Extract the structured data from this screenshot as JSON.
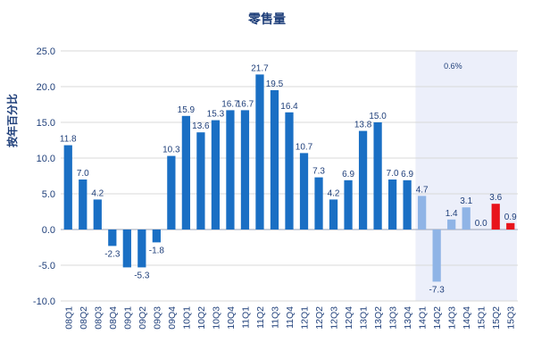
{
  "chart_data": {
    "type": "bar",
    "title": "零售量",
    "ylabel": "按年百分比",
    "xlabel": "",
    "ylim": [
      -10,
      25
    ],
    "yticks": [
      "25.0",
      "20.0",
      "15.0",
      "10.0",
      "5.0",
      "0.0",
      "-5.0",
      "-10.0"
    ],
    "grid": true,
    "legend": "none",
    "categories": [
      "08Q1",
      "08Q2",
      "08Q3",
      "08Q4",
      "09Q1",
      "09Q2",
      "09Q3",
      "09Q4",
      "10Q1",
      "10Q2",
      "10Q3",
      "10Q4",
      "11Q1",
      "11Q2",
      "11Q3",
      "11Q4",
      "12Q1",
      "12Q2",
      "12Q3",
      "12Q4",
      "13Q1",
      "13Q2",
      "13Q3",
      "13Q4",
      "14Q1",
      "14Q2",
      "14Q3",
      "14Q4",
      "15Q1",
      "15Q2",
      "15Q3"
    ],
    "values": [
      11.8,
      7.0,
      4.2,
      -2.3,
      -5.3,
      -5.3,
      -1.8,
      10.3,
      15.9,
      13.6,
      15.3,
      16.7,
      16.7,
      21.7,
      19.5,
      16.4,
      10.7,
      7.3,
      4.2,
      6.9,
      13.8,
      15.0,
      7.0,
      6.9,
      4.7,
      -7.3,
      1.4,
      3.1,
      0.0,
      3.6,
      0.9
    ],
    "labels": [
      "11.8",
      "7.0",
      "4.2",
      "-2.3",
      "",
      "-5.3",
      "-1.8",
      "10.3",
      "15.9",
      "13.6",
      "15.3",
      "16.7",
      "16.7",
      "21.7",
      "19.5",
      "16.4",
      "10.7",
      "7.3",
      "4.2",
      "6.9",
      "13.8",
      "15.0",
      "7.0",
      "6.9",
      "4.7",
      "-7.3",
      "1.4",
      "3.1",
      "0.0",
      "3.6",
      "0.9"
    ],
    "bar_groups": [
      "actual",
      "actual",
      "actual",
      "actual",
      "actual",
      "actual",
      "actual",
      "actual",
      "actual",
      "actual",
      "actual",
      "actual",
      "actual",
      "actual",
      "actual",
      "actual",
      "actual",
      "actual",
      "actual",
      "actual",
      "actual",
      "actual",
      "actual",
      "actual",
      "recent",
      "recent",
      "recent",
      "recent",
      "recent",
      "latest",
      "latest"
    ],
    "colors": {
      "actual": "#1a6fc4",
      "recent": "#8fb4e6",
      "latest": "#e8141b",
      "highlight": "#eceffa",
      "text": "#1f3f7a",
      "grid": "#d8d8d8"
    },
    "highlight_range": [
      "14Q1",
      "15Q3"
    ],
    "annotation": "0.6%"
  }
}
